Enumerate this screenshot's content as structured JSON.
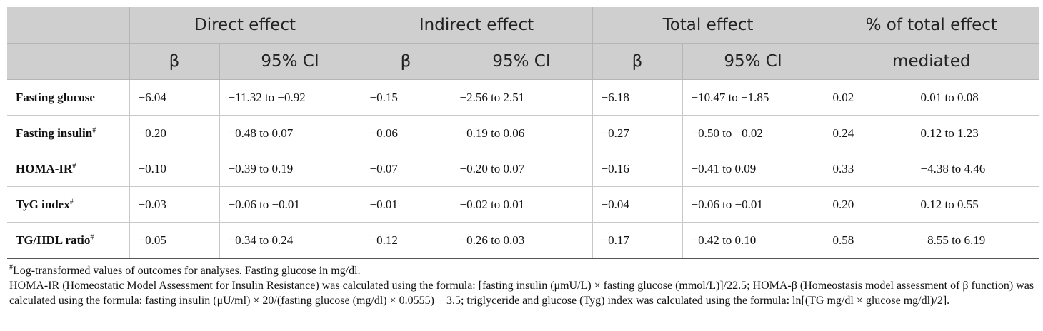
{
  "header": {
    "groups": [
      "Direct effect",
      "Indirect effect",
      "Total effect",
      "% of total effect"
    ],
    "subheaders": [
      "β",
      "95% CI",
      "β",
      "95% CI",
      "β",
      "95% CI"
    ],
    "mediated_label": "mediated"
  },
  "rows": [
    {
      "label": "Fasting glucose",
      "mark": "",
      "cells": [
        "−6.04",
        "−11.32 to −0.92",
        "−0.15",
        "−2.56 to 2.51",
        "−6.18",
        "−10.47 to −1.85",
        "0.02",
        "0.01 to 0.08"
      ]
    },
    {
      "label": "Fasting insulin",
      "mark": "#",
      "cells": [
        "−0.20",
        "−0.48 to 0.07",
        "−0.06",
        "−0.19 to 0.06",
        "−0.27",
        "−0.50 to −0.02",
        "0.24",
        "0.12 to 1.23"
      ]
    },
    {
      "label": "HOMA-IR",
      "mark": "#",
      "cells": [
        "−0.10",
        "−0.39 to 0.19",
        "−0.07",
        "−0.20 to 0.07",
        "−0.16",
        "−0.41 to 0.09",
        "0.33",
        "−4.38 to 4.46"
      ]
    },
    {
      "label": "TyG index",
      "mark": "#",
      "cells": [
        "−0.03",
        "−0.06 to −0.01",
        "−0.01",
        "−0.02 to 0.01",
        "−0.04",
        "−0.06 to −0.01",
        "0.20",
        "0.12 to 0.55"
      ]
    },
    {
      "label": "TG/HDL ratio",
      "mark": "#",
      "cells": [
        "−0.05",
        "−0.34 to 0.24",
        "−0.12",
        "−0.26 to 0.03",
        "−0.17",
        "−0.42 to 0.10",
        "0.58",
        "−8.55 to 6.19"
      ]
    }
  ],
  "footnotes": {
    "mark": "#",
    "line1": "Log-transformed values of outcomes for analyses. Fasting glucose in mg/dl.",
    "line2": "HOMA-IR (Homeostatic Model Assessment for Insulin Resistance) was calculated using the formula: [fasting insulin (μmU/L) × fasting glucose (mmol/L)]/22.5; HOMA-β (Homeostasis model assessment of β function) was calculated using the formula: fasting insulin (μU/ml) × 20/(fasting glucose (mg/dl) × 0.0555) − 3.5; triglyceride and glucose (Tyg) index was calculated using the formula: ln[(TG mg/dl × glucose mg/dl)/2]."
  }
}
